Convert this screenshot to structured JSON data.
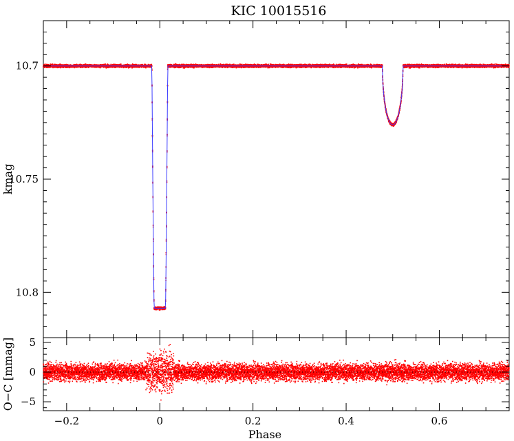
{
  "chart_data": [
    {
      "type": "scatter",
      "panel": "light-curve",
      "title": "KIC 10015516",
      "xlabel": "",
      "ylabel": "kmag",
      "xlim": [
        -0.25,
        0.75
      ],
      "ylim": [
        10.82,
        10.68
      ],
      "y_inverted": true,
      "x_ticks": [
        -0.2,
        0,
        0.2,
        0.4,
        0.6
      ],
      "y_ticks": [
        10.7,
        10.75,
        10.8
      ],
      "y_tick_labels": [
        "10.7",
        "10.75",
        "10.8"
      ],
      "baseline": 10.7,
      "primary_eclipse": {
        "phase": 0.0,
        "depth_mag": 10.807,
        "half_width": 0.017
      },
      "secondary_eclipse": {
        "phase": 0.5,
        "depth_mag": 10.726,
        "half_width": 0.022
      },
      "series": [
        {
          "role": "observations",
          "color": "#ff0000"
        },
        {
          "role": "model",
          "color": "#3b3bff"
        }
      ]
    },
    {
      "type": "scatter",
      "panel": "residuals",
      "xlabel": "Phase",
      "ylabel": "O−C [mmag]",
      "xlim": [
        -0.25,
        0.75
      ],
      "ylim": [
        -6.5,
        5.8
      ],
      "x_ticks": [
        -0.2,
        0,
        0.2,
        0.4,
        0.6
      ],
      "x_tick_labels": [
        "−0.2",
        "0",
        "0.2",
        "0.4",
        "0.6"
      ],
      "y_ticks": [
        -5,
        0,
        5
      ],
      "y_tick_labels": [
        "−5",
        "0",
        "5"
      ],
      "zero_line": 0,
      "scatter_mmag": 1.0,
      "series": [
        {
          "role": "residuals",
          "color": "#ff0000"
        }
      ]
    }
  ]
}
